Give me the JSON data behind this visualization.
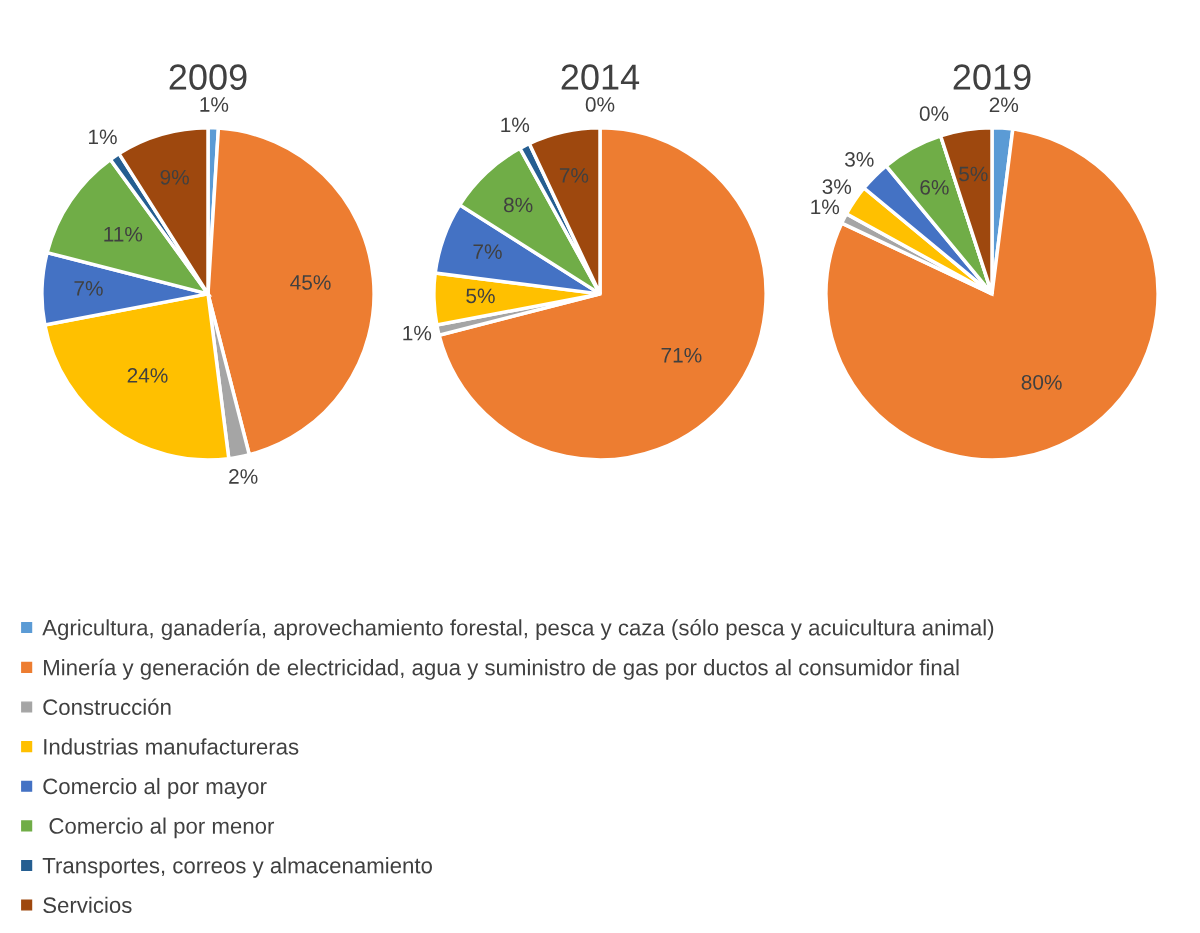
{
  "chart_data": [
    {
      "type": "pie",
      "title": "2009",
      "legend": "bottom",
      "categories": [
        "Agricultura, ganadería, aprovechamiento forestal, pesca y caza (sólo pesca y acuicultura animal)",
        "Minería y generación de electricidad, agua y suministro de gas por ductos al consumidor final",
        "Construcción",
        "Industrias manufactureras",
        "Comercio al por mayor",
        " Comercio al por menor",
        "Transportes, correos y almacenamiento",
        "Servicios"
      ],
      "values": [
        1,
        45,
        2,
        24,
        7,
        11,
        1,
        9
      ],
      "value_labels": [
        "1%",
        "45%",
        "2%",
        "24%",
        "7%",
        "11%",
        "1%",
        "9%"
      ],
      "colors": [
        "#5b9bd5",
        "#ed7d31",
        "#a5a5a5",
        "#ffc000",
        "#4472c4",
        "#70ad47",
        "#255e91",
        "#9e480e"
      ]
    },
    {
      "type": "pie",
      "title": "2014",
      "values": [
        0,
        71,
        1,
        5,
        7,
        8,
        1,
        7
      ],
      "value_labels": [
        "0%",
        "71%",
        "1%",
        "5%",
        "7%",
        "8%",
        "1%",
        "7%"
      ],
      "colors": [
        "#5b9bd5",
        "#ed7d31",
        "#a5a5a5",
        "#ffc000",
        "#4472c4",
        "#70ad47",
        "#255e91",
        "#9e480e"
      ]
    },
    {
      "type": "pie",
      "title": "2019",
      "values": [
        2,
        80,
        1,
        3,
        3,
        6,
        0,
        5
      ],
      "value_labels": [
        "2%",
        "80%",
        "1%",
        "3%",
        "3%",
        "6%",
        "0%",
        "5%"
      ],
      "colors": [
        "#5b9bd5",
        "#ed7d31",
        "#a5a5a5",
        "#ffc000",
        "#4472c4",
        "#70ad47",
        "#255e91",
        "#9e480e"
      ]
    }
  ]
}
